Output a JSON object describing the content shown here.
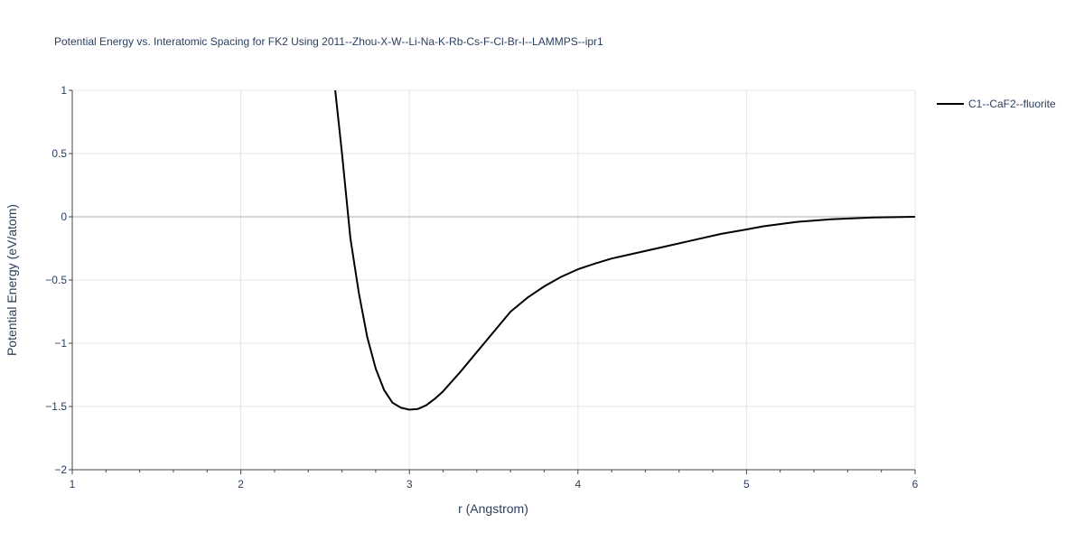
{
  "chart_data": {
    "type": "line",
    "title": "Potential Energy vs. Interatomic Spacing for FK2 Using 2011--Zhou-X-W--Li-Na-K-Rb-Cs-F-Cl-Br-I--LAMMPS--ipr1",
    "xlabel": "r (Angstrom)",
    "ylabel": "Potential Energy (eV/atom)",
    "xlim": [
      1,
      6
    ],
    "ylim": [
      -2,
      1
    ],
    "x_ticks": [
      1,
      2,
      3,
      4,
      5,
      6
    ],
    "x_tick_labels": [
      "1",
      "2",
      "3",
      "4",
      "5",
      "6"
    ],
    "y_ticks": [
      -2,
      -1.5,
      -1,
      -0.5,
      0,
      0.5,
      1
    ],
    "y_tick_labels": [
      "−2",
      "−1.5",
      "−1",
      "−0.5",
      "0",
      "0.5",
      "1"
    ],
    "grid": true,
    "legend_position": "top-right",
    "colors": {
      "series": "#000000",
      "text": "#2a3f5f",
      "grid": "#e5e5e5",
      "zero": "#c8c8c8"
    },
    "series": [
      {
        "name": "C1--CaF2--fluorite",
        "x": [
          2.56,
          2.6,
          2.65,
          2.7,
          2.75,
          2.8,
          2.85,
          2.9,
          2.95,
          3.0,
          3.05,
          3.1,
          3.15,
          3.2,
          3.3,
          3.4,
          3.5,
          3.6,
          3.7,
          3.8,
          3.9,
          4.0,
          4.1,
          4.2,
          4.3,
          4.5,
          4.7,
          4.85,
          5.0,
          5.1,
          5.3,
          5.5,
          5.75,
          6.0
        ],
        "y": [
          1.0,
          0.5,
          -0.17,
          -0.6,
          -0.95,
          -1.2,
          -1.37,
          -1.47,
          -1.51,
          -1.525,
          -1.52,
          -1.49,
          -1.44,
          -1.38,
          -1.23,
          -1.07,
          -0.91,
          -0.75,
          -0.64,
          -0.55,
          -0.475,
          -0.415,
          -0.37,
          -0.33,
          -0.3,
          -0.24,
          -0.18,
          -0.135,
          -0.1,
          -0.075,
          -0.04,
          -0.02,
          -0.005,
          0.0
        ]
      }
    ]
  }
}
